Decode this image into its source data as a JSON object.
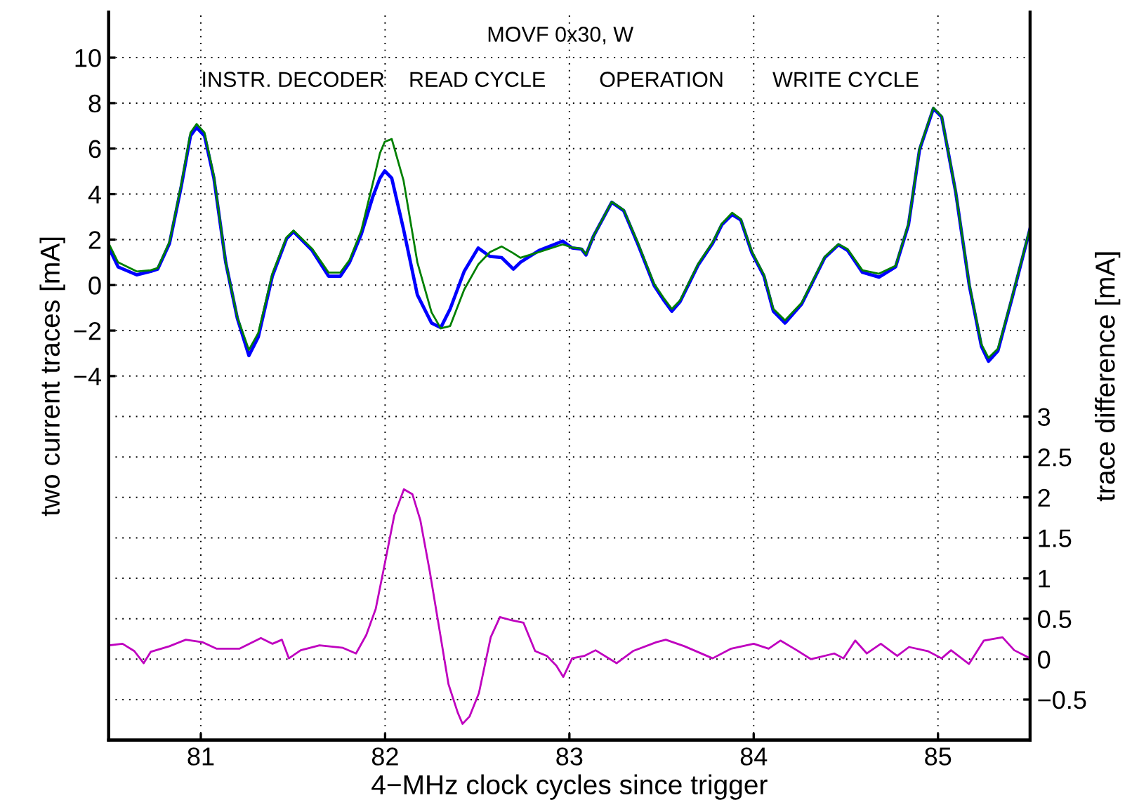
{
  "chart_data": {
    "type": "line",
    "xlabel": "4−MHz clock cycles since trigger",
    "ylabel": "two current traces [mA]",
    "y2label": "trace difference [mA]",
    "annotations": [
      "MOVF 0x30, W",
      "INSTR. DECODER",
      "READ CYCLE",
      "OPERATION",
      "WRITE CYCLE"
    ],
    "xlim": [
      80.5,
      85.5
    ],
    "xticks": [
      81,
      82,
      83,
      84,
      85
    ],
    "ylim": [
      -20,
      12
    ],
    "yticks": [
      {
        "value": -4,
        "label": "−4"
      },
      {
        "value": -2,
        "label": "−2"
      },
      0,
      2,
      4,
      6,
      8,
      10
    ],
    "y2lim": [
      -1,
      8
    ],
    "y2ticks": [
      {
        "value": -0.5,
        "label": "−0.5"
      },
      0,
      0.5,
      1,
      1.5,
      2,
      2.5,
      3
    ],
    "grid": true,
    "line_style": "solid",
    "series": [
      {
        "color": "#0000ff",
        "x": [
          80.502,
          80.551,
          80.652,
          80.728,
          80.766,
          80.83,
          80.893,
          80.944,
          80.977,
          81.02,
          81.071,
          81.135,
          81.198,
          81.261,
          81.312,
          81.388,
          81.465,
          81.503,
          81.541,
          81.604,
          81.693,
          81.757,
          81.807,
          81.871,
          81.934,
          81.972,
          81.998,
          82.036,
          82.1,
          82.175,
          82.252,
          82.302,
          82.353,
          82.429,
          82.505,
          82.569,
          82.632,
          82.696,
          82.734,
          82.835,
          82.964,
          83.015,
          83.066,
          83.09,
          83.13,
          83.23,
          83.295,
          83.37,
          83.46,
          83.51,
          83.556,
          83.6,
          83.7,
          83.777,
          83.827,
          83.883,
          83.93,
          83.99,
          84.056,
          84.107,
          84.17,
          84.26,
          84.386,
          84.46,
          84.51,
          84.59,
          84.68,
          84.77,
          84.84,
          84.9,
          84.975,
          85.02,
          85.096,
          85.17,
          85.236,
          85.274,
          85.325,
          85.4,
          85.5
        ],
        "values": [
          1.63,
          0.8,
          0.45,
          0.6,
          0.7,
          1.83,
          4.3,
          6.56,
          6.93,
          6.56,
          4.7,
          1.0,
          -1.46,
          -3.1,
          -2.28,
          0.39,
          2.04,
          2.35,
          2.04,
          1.52,
          0.39,
          0.39,
          1.0,
          2.24,
          3.9,
          4.7,
          5.02,
          4.7,
          2.45,
          -0.43,
          -1.67,
          -1.87,
          -1.05,
          0.6,
          1.63,
          1.26,
          1.21,
          0.7,
          1.0,
          1.52,
          1.93,
          1.63,
          1.58,
          1.32,
          2.14,
          3.64,
          3.27,
          1.83,
          -0.02,
          -0.64,
          -1.15,
          -0.74,
          0.9,
          1.83,
          2.65,
          3.1,
          2.86,
          1.42,
          0.39,
          -1.15,
          -1.67,
          -0.84,
          1.21,
          1.77,
          1.52,
          0.56,
          0.35,
          0.8,
          2.65,
          5.95,
          7.76,
          7.39,
          4.09,
          -0.02,
          -2.7,
          -3.35,
          -2.9,
          -0.64,
          2.49
        ]
      },
      {
        "color": "#008000",
        "x": [
          80.502,
          80.551,
          80.652,
          80.728,
          80.766,
          80.83,
          80.893,
          80.944,
          80.977,
          81.02,
          81.071,
          81.135,
          81.198,
          81.261,
          81.312,
          81.388,
          81.465,
          81.503,
          81.541,
          81.604,
          81.693,
          81.757,
          81.807,
          81.871,
          81.934,
          81.972,
          81.998,
          82.036,
          82.1,
          82.175,
          82.252,
          82.302,
          82.353,
          82.429,
          82.505,
          82.569,
          82.632,
          82.696,
          82.734,
          82.835,
          82.964,
          83.015,
          83.066,
          83.09,
          83.13,
          83.23,
          83.295,
          83.37,
          83.46,
          83.51,
          83.556,
          83.6,
          83.7,
          83.777,
          83.827,
          83.883,
          83.93,
          83.99,
          84.056,
          84.107,
          84.17,
          84.26,
          84.386,
          84.46,
          84.51,
          84.59,
          84.68,
          84.77,
          84.84,
          84.9,
          84.975,
          85.02,
          85.096,
          85.17,
          85.236,
          85.274,
          85.325,
          85.4,
          85.5
        ],
        "values": [
          1.8,
          1.0,
          0.6,
          0.65,
          0.75,
          1.9,
          4.4,
          6.7,
          7.08,
          6.7,
          4.8,
          1.0,
          -1.4,
          -2.85,
          -2.1,
          0.5,
          2.1,
          2.4,
          2.1,
          1.6,
          0.55,
          0.55,
          1.1,
          2.4,
          4.5,
          5.8,
          6.3,
          6.42,
          4.6,
          1.0,
          -1.2,
          -1.9,
          -1.8,
          -0.2,
          0.9,
          1.45,
          1.7,
          1.4,
          1.2,
          1.45,
          1.79,
          1.65,
          1.6,
          1.35,
          2.15,
          3.66,
          3.3,
          1.9,
          0.05,
          -0.55,
          -1.05,
          -0.68,
          0.95,
          1.88,
          2.7,
          3.18,
          2.9,
          1.48,
          0.45,
          -1.05,
          -1.55,
          -0.78,
          1.25,
          1.8,
          1.58,
          0.65,
          0.5,
          0.85,
          2.7,
          6.0,
          7.8,
          7.42,
          4.12,
          0.05,
          -2.6,
          -3.2,
          -2.8,
          -0.58,
          2.52
        ]
      },
      {
        "color": "#bf00bf",
        "axis": "y2",
        "x": [
          80.501,
          80.575,
          80.639,
          80.69,
          80.728,
          80.83,
          80.919,
          81.008,
          81.084,
          81.211,
          81.326,
          81.389,
          81.44,
          81.478,
          81.542,
          81.644,
          81.771,
          81.842,
          81.898,
          81.949,
          82.0,
          82.05,
          82.102,
          82.148,
          82.191,
          82.242,
          82.293,
          82.344,
          82.394,
          82.42,
          82.458,
          82.509,
          82.573,
          82.623,
          82.687,
          82.751,
          82.814,
          82.878,
          82.929,
          82.967,
          83.015,
          83.081,
          83.142,
          83.256,
          83.345,
          83.472,
          83.523,
          83.624,
          83.777,
          83.878,
          84.0,
          84.081,
          84.145,
          84.234,
          84.31,
          84.437,
          84.487,
          84.551,
          84.614,
          84.69,
          84.779,
          84.843,
          84.944,
          85.02,
          85.071,
          85.168,
          85.249,
          85.35,
          85.414,
          85.5
        ],
        "values": [
          0.17,
          0.19,
          0.1,
          -0.05,
          0.09,
          0.16,
          0.24,
          0.21,
          0.13,
          0.13,
          0.26,
          0.19,
          0.24,
          0.01,
          0.11,
          0.17,
          0.14,
          0.07,
          0.3,
          0.62,
          1.2,
          1.78,
          2.1,
          2.04,
          1.72,
          1.09,
          0.39,
          -0.31,
          -0.66,
          -0.8,
          -0.71,
          -0.42,
          0.27,
          0.52,
          0.48,
          0.45,
          0.1,
          0.04,
          -0.08,
          -0.22,
          0.01,
          0.04,
          0.11,
          -0.05,
          0.1,
          0.21,
          0.24,
          0.16,
          0.01,
          0.13,
          0.19,
          0.13,
          0.23,
          0.11,
          0.0,
          0.07,
          0.01,
          0.23,
          0.07,
          0.19,
          0.04,
          0.15,
          0.1,
          0.01,
          0.11,
          -0.06,
          0.23,
          0.27,
          0.11,
          0.01
        ]
      }
    ]
  }
}
